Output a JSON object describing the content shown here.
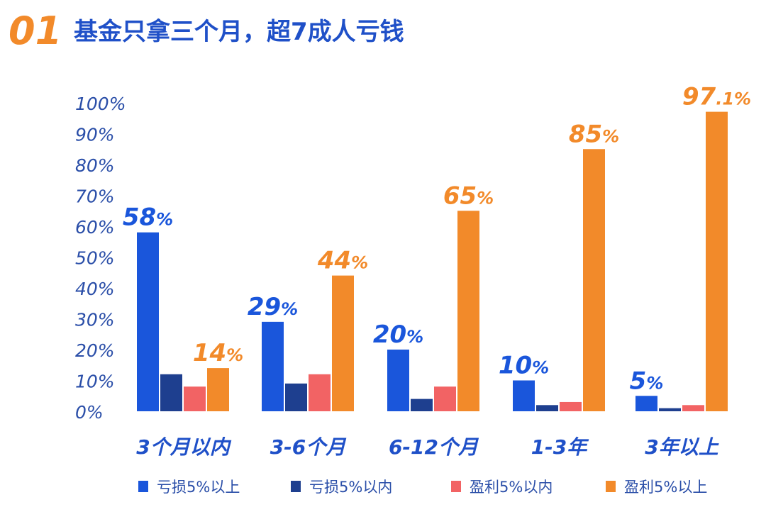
{
  "heading": {
    "number": "01",
    "text": "基金只拿三个月，超7成人亏钱"
  },
  "colors": {
    "heading_number": "#f28a2a",
    "heading_text": "#1f50c8",
    "axis_text": "#2a4ea8",
    "series": [
      "#1a56db",
      "#1e3f8f",
      "#f26364",
      "#f28a2a"
    ]
  },
  "chart_data": {
    "type": "bar",
    "title": "",
    "xlabel": "",
    "ylabel": "",
    "ylim": [
      0,
      100
    ],
    "y_ticks": [
      "0%",
      "10%",
      "20%",
      "30%",
      "40%",
      "50%",
      "60%",
      "70%",
      "80%",
      "90%",
      "100%"
    ],
    "categories": [
      "3个月以内",
      "3-6个月",
      "6-12个月",
      "1-3年",
      "3年以上"
    ],
    "grid": false,
    "legend_position": "bottom",
    "series": [
      {
        "name": "亏损5%以上",
        "values": [
          58,
          29,
          20,
          10,
          5
        ],
        "labels": [
          "58%",
          "29%",
          "20%",
          "10%",
          "5%"
        ]
      },
      {
        "name": "亏损5%以内",
        "values": [
          12,
          9,
          4,
          2,
          1
        ],
        "labels": [
          null,
          null,
          null,
          null,
          null
        ]
      },
      {
        "name": "盈利5%以内",
        "values": [
          8,
          12,
          8,
          3,
          2
        ],
        "labels": [
          null,
          null,
          null,
          null,
          null
        ]
      },
      {
        "name": "盈利5%以上",
        "values": [
          14,
          44,
          65,
          85,
          97.1
        ],
        "labels": [
          "14%",
          "44%",
          "65%",
          "85%",
          "97.1%"
        ]
      }
    ]
  }
}
